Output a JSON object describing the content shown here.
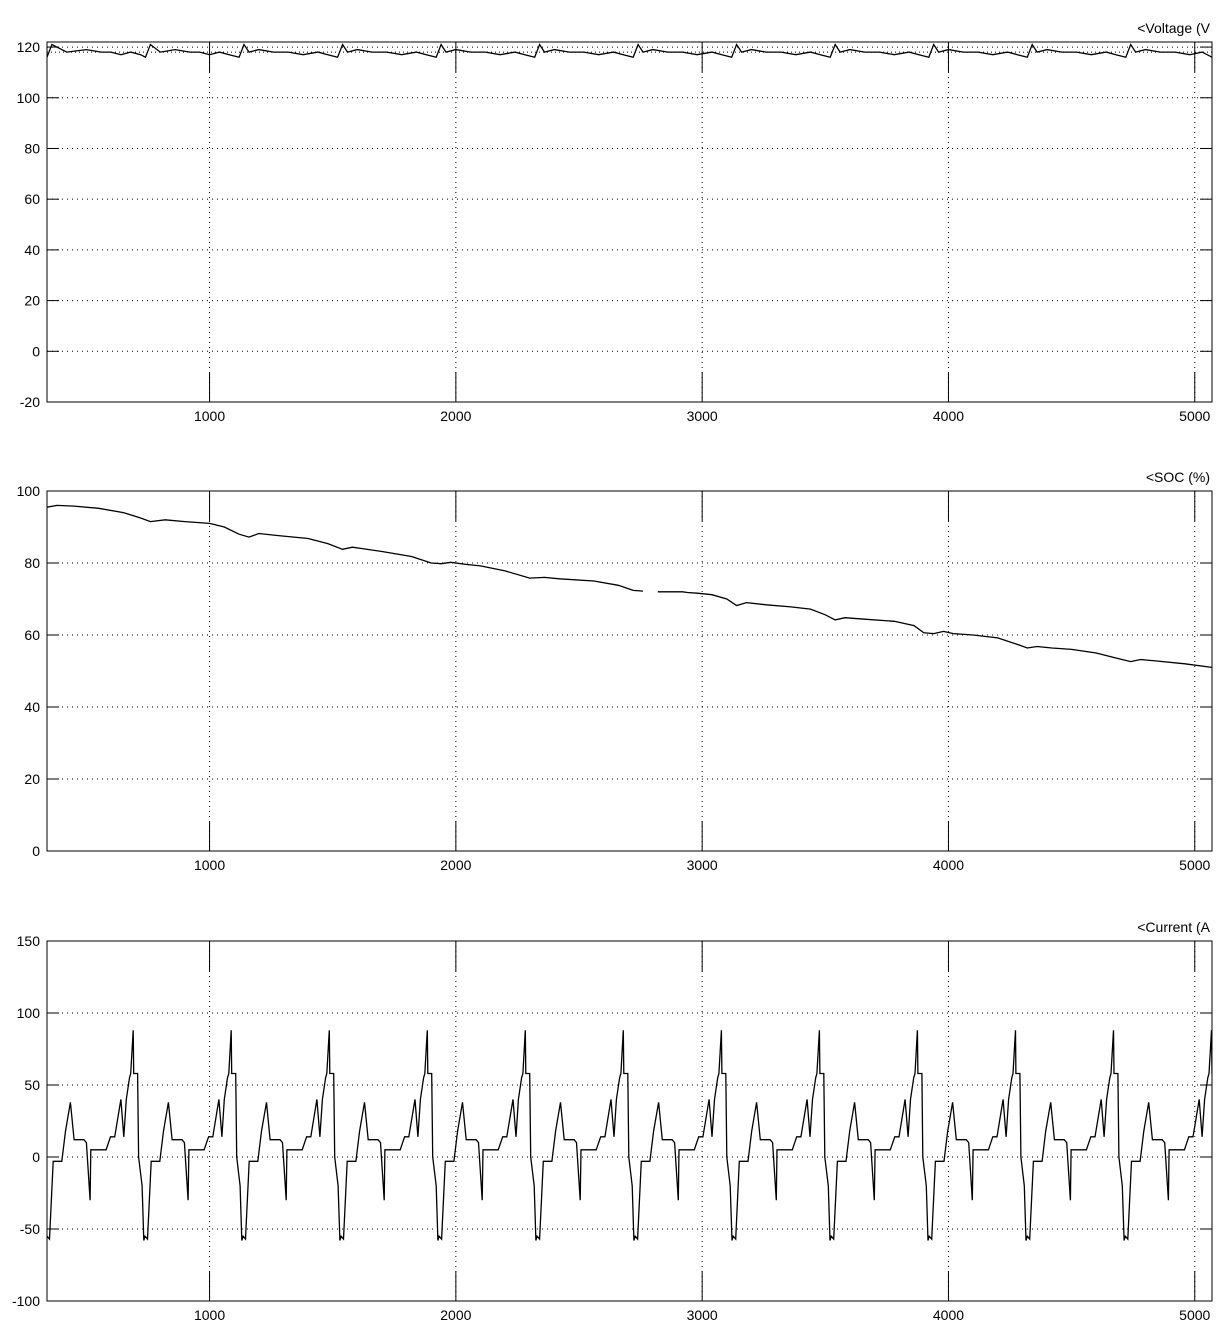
{
  "chart_data": [
    {
      "type": "line",
      "title": "<Voltage (V",
      "xlim": [
        340,
        5070
      ],
      "ylim": [
        -20,
        122
      ],
      "xticks": [
        1000,
        2000,
        3000,
        4000,
        5000
      ],
      "yticks": [
        120,
        100,
        80,
        60,
        40,
        20,
        0,
        -20
      ],
      "grid": true,
      "series": [
        {
          "x": [
            340,
            360,
            420,
            500,
            560,
            600,
            640,
            680,
            720,
            740,
            760,
            800,
            860,
            920,
            960,
            1000,
            1040,
            1080,
            1120,
            1140,
            1160,
            1200,
            1260,
            1320,
            1380,
            1440,
            1480,
            1520,
            1540,
            1560,
            1600,
            1660,
            1720,
            1780,
            1840,
            1880,
            1920,
            1940,
            1960,
            2000,
            2060,
            2120,
            2180,
            2240,
            2280,
            2320,
            2340,
            2360,
            2400,
            2460,
            2520,
            2580,
            2640,
            2680,
            2720,
            2740,
            2760,
            2800,
            2860,
            2920,
            2980,
            3040,
            3080,
            3120,
            3140,
            3160,
            3200,
            3260,
            3320,
            3380,
            3440,
            3480,
            3520,
            3540,
            3560,
            3600,
            3660,
            3720,
            3780,
            3840,
            3880,
            3920,
            3940,
            3960,
            4000,
            4060,
            4120,
            4180,
            4240,
            4280,
            4320,
            4340,
            4360,
            4400,
            4460,
            4520,
            4580,
            4640,
            4680,
            4720,
            4740,
            4760,
            4800,
            4860,
            4920,
            4980,
            5030,
            5070
          ],
          "y": [
            116,
            121,
            118,
            119,
            118,
            118,
            117,
            118,
            117,
            116,
            121,
            118,
            119,
            118,
            118,
            117,
            118,
            117,
            116,
            121,
            118,
            119,
            118,
            118,
            117,
            118,
            117,
            116,
            121,
            118,
            119,
            118,
            118,
            117,
            118,
            117,
            116,
            121,
            118,
            119,
            118,
            118,
            117,
            118,
            117,
            116,
            121,
            118,
            119,
            118,
            118,
            117,
            118,
            117,
            116,
            121,
            118,
            119,
            118,
            118,
            117,
            118,
            117,
            116,
            121,
            118,
            119,
            118,
            118,
            117,
            118,
            117,
            116,
            121,
            118,
            119,
            118,
            118,
            117,
            118,
            117,
            116,
            121,
            118,
            119,
            118,
            118,
            117,
            118,
            117,
            116,
            121,
            118,
            119,
            118,
            118,
            117,
            118,
            117,
            116,
            121,
            118,
            119,
            118,
            118,
            117,
            118,
            116
          ]
        }
      ],
      "reference_line": 118
    },
    {
      "type": "line",
      "title": "<SOC (%)",
      "xlim": [
        340,
        5070
      ],
      "ylim": [
        0,
        100
      ],
      "xticks": [
        1000,
        2000,
        3000,
        4000,
        5000
      ],
      "yticks": [
        100,
        80,
        60,
        40,
        20,
        0
      ],
      "grid": true,
      "series": [
        {
          "x": [
            340,
            380,
            450,
            550,
            650,
            720,
            760,
            820,
            900,
            1000,
            1060,
            1120,
            1160,
            1200,
            1280,
            1400,
            1480,
            1540,
            1580,
            1620,
            1700,
            1820,
            1900,
            1940,
            1980,
            2040,
            2100,
            2200,
            2300,
            2360,
            2420,
            2560,
            2660,
            2720,
            2760
          ],
          "y": [
            95.5,
            96,
            95.8,
            95.2,
            94,
            92.5,
            91.5,
            92,
            91.5,
            91,
            90,
            88,
            87.2,
            88.2,
            87.6,
            86.8,
            85.4,
            83.8,
            84.4,
            84,
            83.2,
            81.8,
            80,
            79.8,
            80.2,
            79.6,
            79.2,
            77.8,
            75.8,
            76,
            75.6,
            75,
            73.8,
            72.4,
            72.2
          ]
        },
        {
          "x": [
            2820,
            2920,
            2940,
            2980,
            3040,
            3100,
            3140,
            3180,
            3260,
            3360,
            3440,
            3500,
            3540,
            3580,
            3660,
            3780,
            3860,
            3900,
            3940,
            3980,
            4020,
            4100,
            4200,
            4280,
            4320,
            4360,
            4420,
            4500,
            4600,
            4680,
            4740,
            4780,
            4840,
            4960,
            5070
          ],
          "y": [
            72,
            72,
            71.8,
            71.6,
            71.2,
            70,
            68.2,
            69,
            68.4,
            67.8,
            67.2,
            65.6,
            64.2,
            64.8,
            64.4,
            63.8,
            62.6,
            60.6,
            60.4,
            61,
            60.4,
            60,
            59.2,
            57.4,
            56.4,
            56.8,
            56.4,
            56,
            55,
            53.6,
            52.6,
            53.2,
            52.8,
            52,
            51
          ]
        }
      ]
    },
    {
      "type": "line",
      "title": "<Current (A",
      "xlim": [
        340,
        5070
      ],
      "ylim": [
        -100,
        150
      ],
      "xticks": [
        1000,
        2000,
        3000,
        4000,
        5000
      ],
      "yticks": [
        150,
        100,
        50,
        0,
        -50,
        -100
      ],
      "grid": true,
      "period": 398,
      "cycle_shape": {
        "dt": [
          0,
          10,
          25,
          40,
          60,
          75,
          95,
          110,
          140,
          150,
          160,
          175,
          178,
          192,
          202,
          205,
          240,
          258,
          262,
          275,
          300,
          312,
          322,
          335,
          340,
          350,
          352,
          368,
          372,
          386,
          393,
          398
        ],
        "value": [
          -55,
          -57,
          -3,
          -3,
          -3,
          18,
          38,
          12,
          12,
          12,
          10,
          -30,
          5,
          5,
          5,
          5,
          5,
          14,
          14,
          14,
          40,
          14,
          40,
          55,
          58,
          88,
          58,
          58,
          0,
          -20,
          -58,
          -55
        ]
      }
    }
  ]
}
